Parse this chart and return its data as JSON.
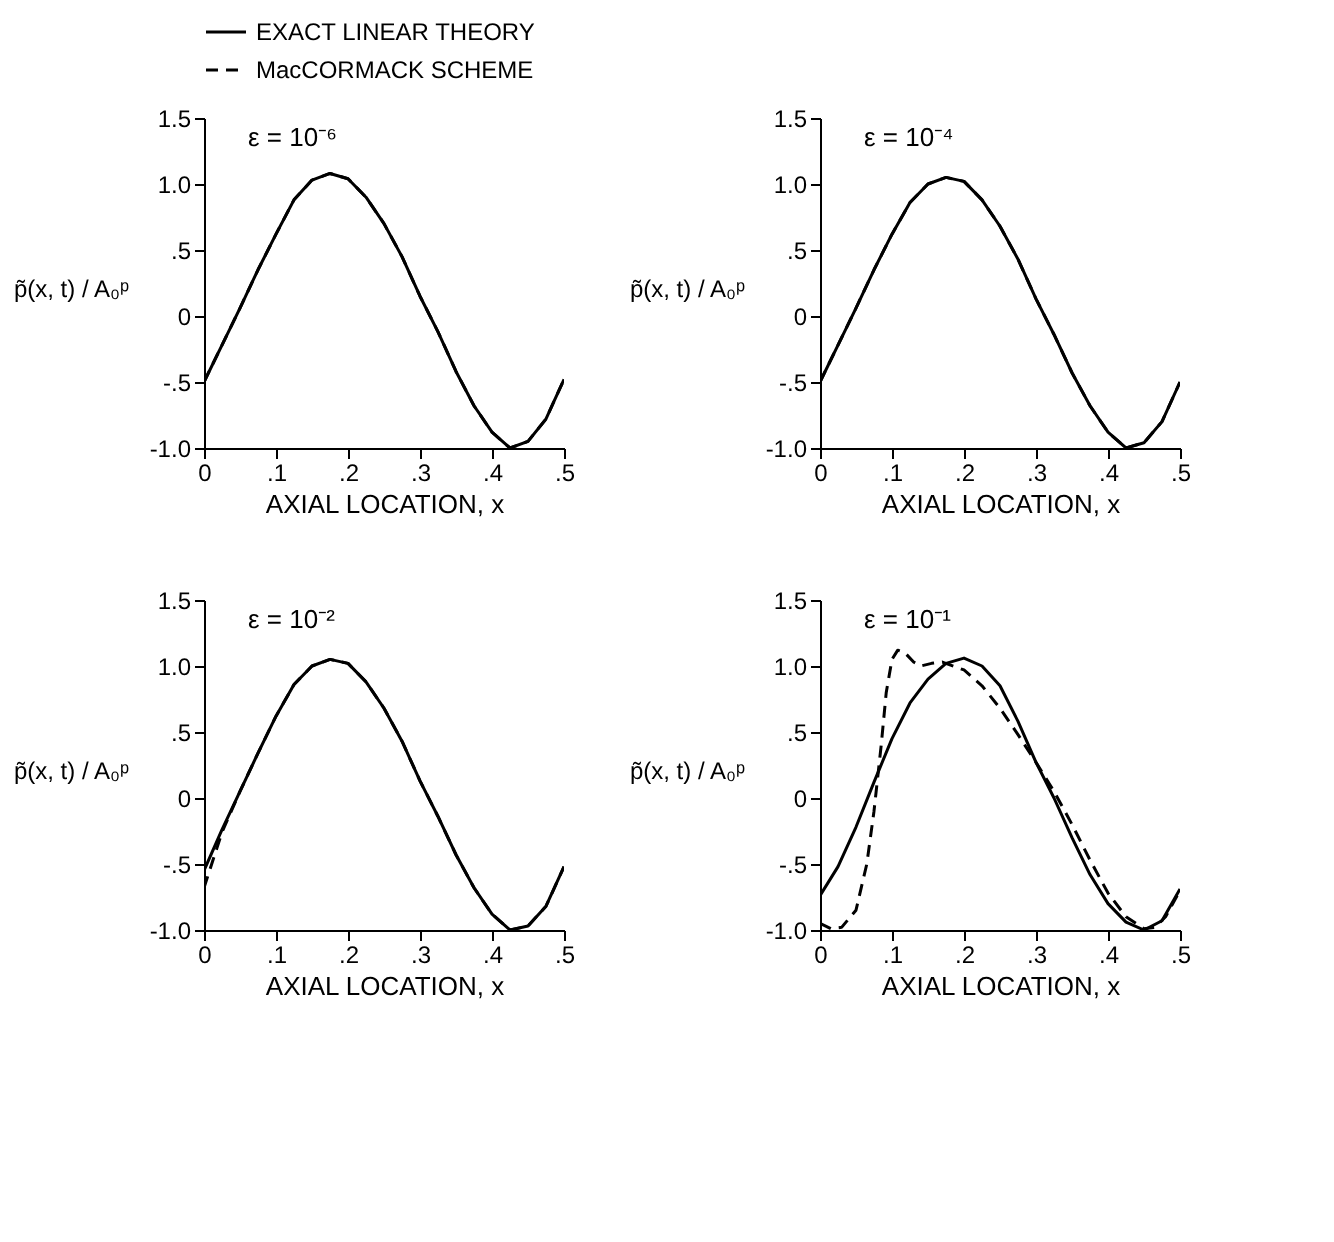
{
  "chart_data": [
    {
      "type": "line",
      "xlabel": "AXIAL LOCATION, x",
      "ylabel": "p̃(x, t) / A₀ᵖ",
      "annotations": [
        "ε = 10⁻⁶"
      ],
      "legend": "top",
      "grid": false,
      "x": [
        0,
        0.025,
        0.05,
        0.075,
        0.1,
        0.125,
        0.15,
        0.175,
        0.2,
        0.225,
        0.25,
        0.275,
        0.3,
        0.325,
        0.35,
        0.375,
        0.4,
        0.425,
        0.45,
        0.475,
        0.5
      ],
      "xlim": [
        0,
        0.5
      ],
      "xticks": [
        {
          "value": 0,
          "label": "0"
        },
        {
          "value": 0.1,
          "label": ".1"
        },
        {
          "value": 0.2,
          "label": ".2"
        },
        {
          "value": 0.3,
          "label": ".3"
        },
        {
          "value": 0.4,
          "label": ".4"
        },
        {
          "value": 0.5,
          "label": ".5"
        }
      ],
      "ylim": [
        -1.0,
        1.5
      ],
      "yticks": [
        {
          "value": -1.0,
          "label": "-1.0"
        },
        {
          "value": -0.5,
          "label": "-.5"
        },
        {
          "value": 0,
          "label": "0"
        },
        {
          "value": 0.5,
          "label": ".5"
        },
        {
          "value": 1.0,
          "label": "1.0"
        },
        {
          "value": 1.5,
          "label": "1.5"
        }
      ],
      "series": [
        {
          "name": "EXACT LINEAR THEORY",
          "color": "#000000",
          "line_style": "solid",
          "values": [
            -0.5,
            -0.22,
            0.06,
            0.35,
            0.62,
            0.88,
            1.03,
            1.08,
            1.04,
            0.9,
            0.7,
            0.45,
            0.15,
            -0.12,
            -0.42,
            -0.68,
            -0.88,
            -1.0,
            -0.95,
            -0.78,
            -0.48
          ]
        },
        {
          "name": "MacCORMACK SCHEME",
          "color": "#000000",
          "line_style": "dashed",
          "values": [
            -0.5,
            -0.22,
            0.06,
            0.35,
            0.62,
            0.88,
            1.03,
            1.08,
            1.04,
            0.9,
            0.7,
            0.45,
            0.15,
            -0.12,
            -0.42,
            -0.68,
            -0.88,
            -1.0,
            -0.95,
            -0.78,
            -0.48
          ]
        }
      ]
    },
    {
      "type": "line",
      "xlabel": "AXIAL LOCATION, x",
      "ylabel": "p̃(x, t) / A₀ᵖ",
      "annotations": [
        "ε = 10⁻⁴"
      ],
      "grid": false,
      "x": [
        0,
        0.025,
        0.05,
        0.075,
        0.1,
        0.125,
        0.15,
        0.175,
        0.2,
        0.225,
        0.25,
        0.275,
        0.3,
        0.325,
        0.35,
        0.375,
        0.4,
        0.425,
        0.45,
        0.475,
        0.5
      ],
      "xlim": [
        0,
        0.5
      ],
      "xticks": [
        {
          "value": 0,
          "label": "0"
        },
        {
          "value": 0.1,
          "label": ".1"
        },
        {
          "value": 0.2,
          "label": ".2"
        },
        {
          "value": 0.3,
          "label": ".3"
        },
        {
          "value": 0.4,
          "label": ".4"
        },
        {
          "value": 0.5,
          "label": ".5"
        }
      ],
      "ylim": [
        -1.0,
        1.5
      ],
      "yticks": [
        {
          "value": -1.0,
          "label": "-1.0"
        },
        {
          "value": -0.5,
          "label": "-.5"
        },
        {
          "value": 0,
          "label": "0"
        },
        {
          "value": 0.5,
          "label": ".5"
        },
        {
          "value": 1.0,
          "label": "1.0"
        },
        {
          "value": 1.5,
          "label": "1.5"
        }
      ],
      "series": [
        {
          "color": "#000000",
          "line_style": "solid",
          "values": [
            -0.5,
            -0.22,
            0.06,
            0.35,
            0.62,
            0.86,
            1.0,
            1.05,
            1.02,
            0.88,
            0.68,
            0.43,
            0.13,
            -0.14,
            -0.43,
            -0.68,
            -0.88,
            -1.0,
            -0.96,
            -0.8,
            -0.5
          ]
        },
        {
          "color": "#000000",
          "line_style": "dashed",
          "values": [
            -0.5,
            -0.22,
            0.06,
            0.35,
            0.62,
            0.86,
            1.0,
            1.05,
            1.02,
            0.88,
            0.68,
            0.43,
            0.13,
            -0.14,
            -0.43,
            -0.68,
            -0.88,
            -1.0,
            -0.96,
            -0.8,
            -0.5
          ]
        }
      ]
    },
    {
      "type": "line",
      "xlabel": "AXIAL LOCATION, x",
      "ylabel": "p̃(x, t) / A₀ᵖ",
      "annotations": [
        "ε = 10⁻²"
      ],
      "grid": false,
      "x": [
        0,
        0.025,
        0.05,
        0.075,
        0.1,
        0.125,
        0.15,
        0.175,
        0.2,
        0.225,
        0.25,
        0.275,
        0.3,
        0.325,
        0.35,
        0.375,
        0.4,
        0.425,
        0.45,
        0.475,
        0.5
      ],
      "xlim": [
        0,
        0.5
      ],
      "xticks": [
        {
          "value": 0,
          "label": "0"
        },
        {
          "value": 0.1,
          "label": ".1"
        },
        {
          "value": 0.2,
          "label": ".2"
        },
        {
          "value": 0.3,
          "label": ".3"
        },
        {
          "value": 0.4,
          "label": ".4"
        },
        {
          "value": 0.5,
          "label": ".5"
        }
      ],
      "ylim": [
        -1.0,
        1.5
      ],
      "yticks": [
        {
          "value": -1.0,
          "label": "-1.0"
        },
        {
          "value": -0.5,
          "label": "-.5"
        },
        {
          "value": 0,
          "label": "0"
        },
        {
          "value": 0.5,
          "label": ".5"
        },
        {
          "value": 1.0,
          "label": "1.0"
        },
        {
          "value": 1.5,
          "label": "1.5"
        }
      ],
      "series": [
        {
          "color": "#000000",
          "line_style": "solid",
          "values": [
            -0.55,
            -0.24,
            0.05,
            0.34,
            0.62,
            0.86,
            1.0,
            1.05,
            1.02,
            0.88,
            0.68,
            0.43,
            0.13,
            -0.14,
            -0.43,
            -0.68,
            -0.88,
            -1.0,
            -0.97,
            -0.82,
            -0.52
          ]
        },
        {
          "color": "#000000",
          "line_style": "dashed",
          "values": [
            -0.68,
            -0.26,
            0.05,
            0.34,
            0.62,
            0.86,
            1.0,
            1.05,
            1.02,
            0.88,
            0.68,
            0.43,
            0.13,
            -0.14,
            -0.43,
            -0.68,
            -0.88,
            -1.0,
            -0.97,
            -0.82,
            -0.52
          ]
        }
      ]
    },
    {
      "type": "line",
      "xlabel": "AXIAL LOCATION, x",
      "ylabel": "p̃(x, t) / A₀ᵖ",
      "annotations": [
        "ε = 10⁻¹"
      ],
      "grid": false,
      "xlim": [
        0,
        0.5
      ],
      "xticks": [
        {
          "value": 0,
          "label": "0"
        },
        {
          "value": 0.1,
          "label": ".1"
        },
        {
          "value": 0.2,
          "label": ".2"
        },
        {
          "value": 0.3,
          "label": ".3"
        },
        {
          "value": 0.4,
          "label": ".4"
        },
        {
          "value": 0.5,
          "label": ".5"
        }
      ],
      "ylim": [
        -1.0,
        1.5
      ],
      "yticks": [
        {
          "value": -1.0,
          "label": "-1.0"
        },
        {
          "value": -0.5,
          "label": "-.5"
        },
        {
          "value": 0,
          "label": "0"
        },
        {
          "value": 0.5,
          "label": ".5"
        },
        {
          "value": 1.0,
          "label": "1.0"
        },
        {
          "value": 1.5,
          "label": "1.5"
        }
      ],
      "series": [
        {
          "color": "#000000",
          "line_style": "solid",
          "x": [
            0,
            0.025,
            0.05,
            0.075,
            0.1,
            0.125,
            0.15,
            0.175,
            0.2,
            0.225,
            0.25,
            0.275,
            0.3,
            0.325,
            0.35,
            0.375,
            0.4,
            0.425,
            0.45,
            0.475,
            0.5
          ],
          "values": [
            -0.74,
            -0.52,
            -0.22,
            0.12,
            0.45,
            0.72,
            0.9,
            1.02,
            1.06,
            1.0,
            0.85,
            0.58,
            0.27,
            0.0,
            -0.3,
            -0.58,
            -0.8,
            -0.94,
            -1.0,
            -0.93,
            -0.69
          ]
        },
        {
          "color": "#000000",
          "line_style": "dashed",
          "x": [
            0,
            0.015,
            0.03,
            0.05,
            0.065,
            0.075,
            0.085,
            0.092,
            0.1,
            0.108,
            0.118,
            0.13,
            0.14,
            0.155,
            0.17,
            0.2,
            0.225,
            0.25,
            0.275,
            0.3,
            0.325,
            0.35,
            0.375,
            0.4,
            0.425,
            0.45,
            0.465,
            0.48,
            0.5
          ],
          "values": [
            -0.95,
            -0.99,
            -0.98,
            -0.85,
            -0.5,
            -0.1,
            0.4,
            0.8,
            1.05,
            1.12,
            1.1,
            1.03,
            1.0,
            1.02,
            1.03,
            0.97,
            0.85,
            0.68,
            0.48,
            0.27,
            0.05,
            -0.2,
            -0.47,
            -0.72,
            -0.9,
            -0.99,
            -0.98,
            -0.9,
            -0.7
          ]
        }
      ]
    }
  ]
}
